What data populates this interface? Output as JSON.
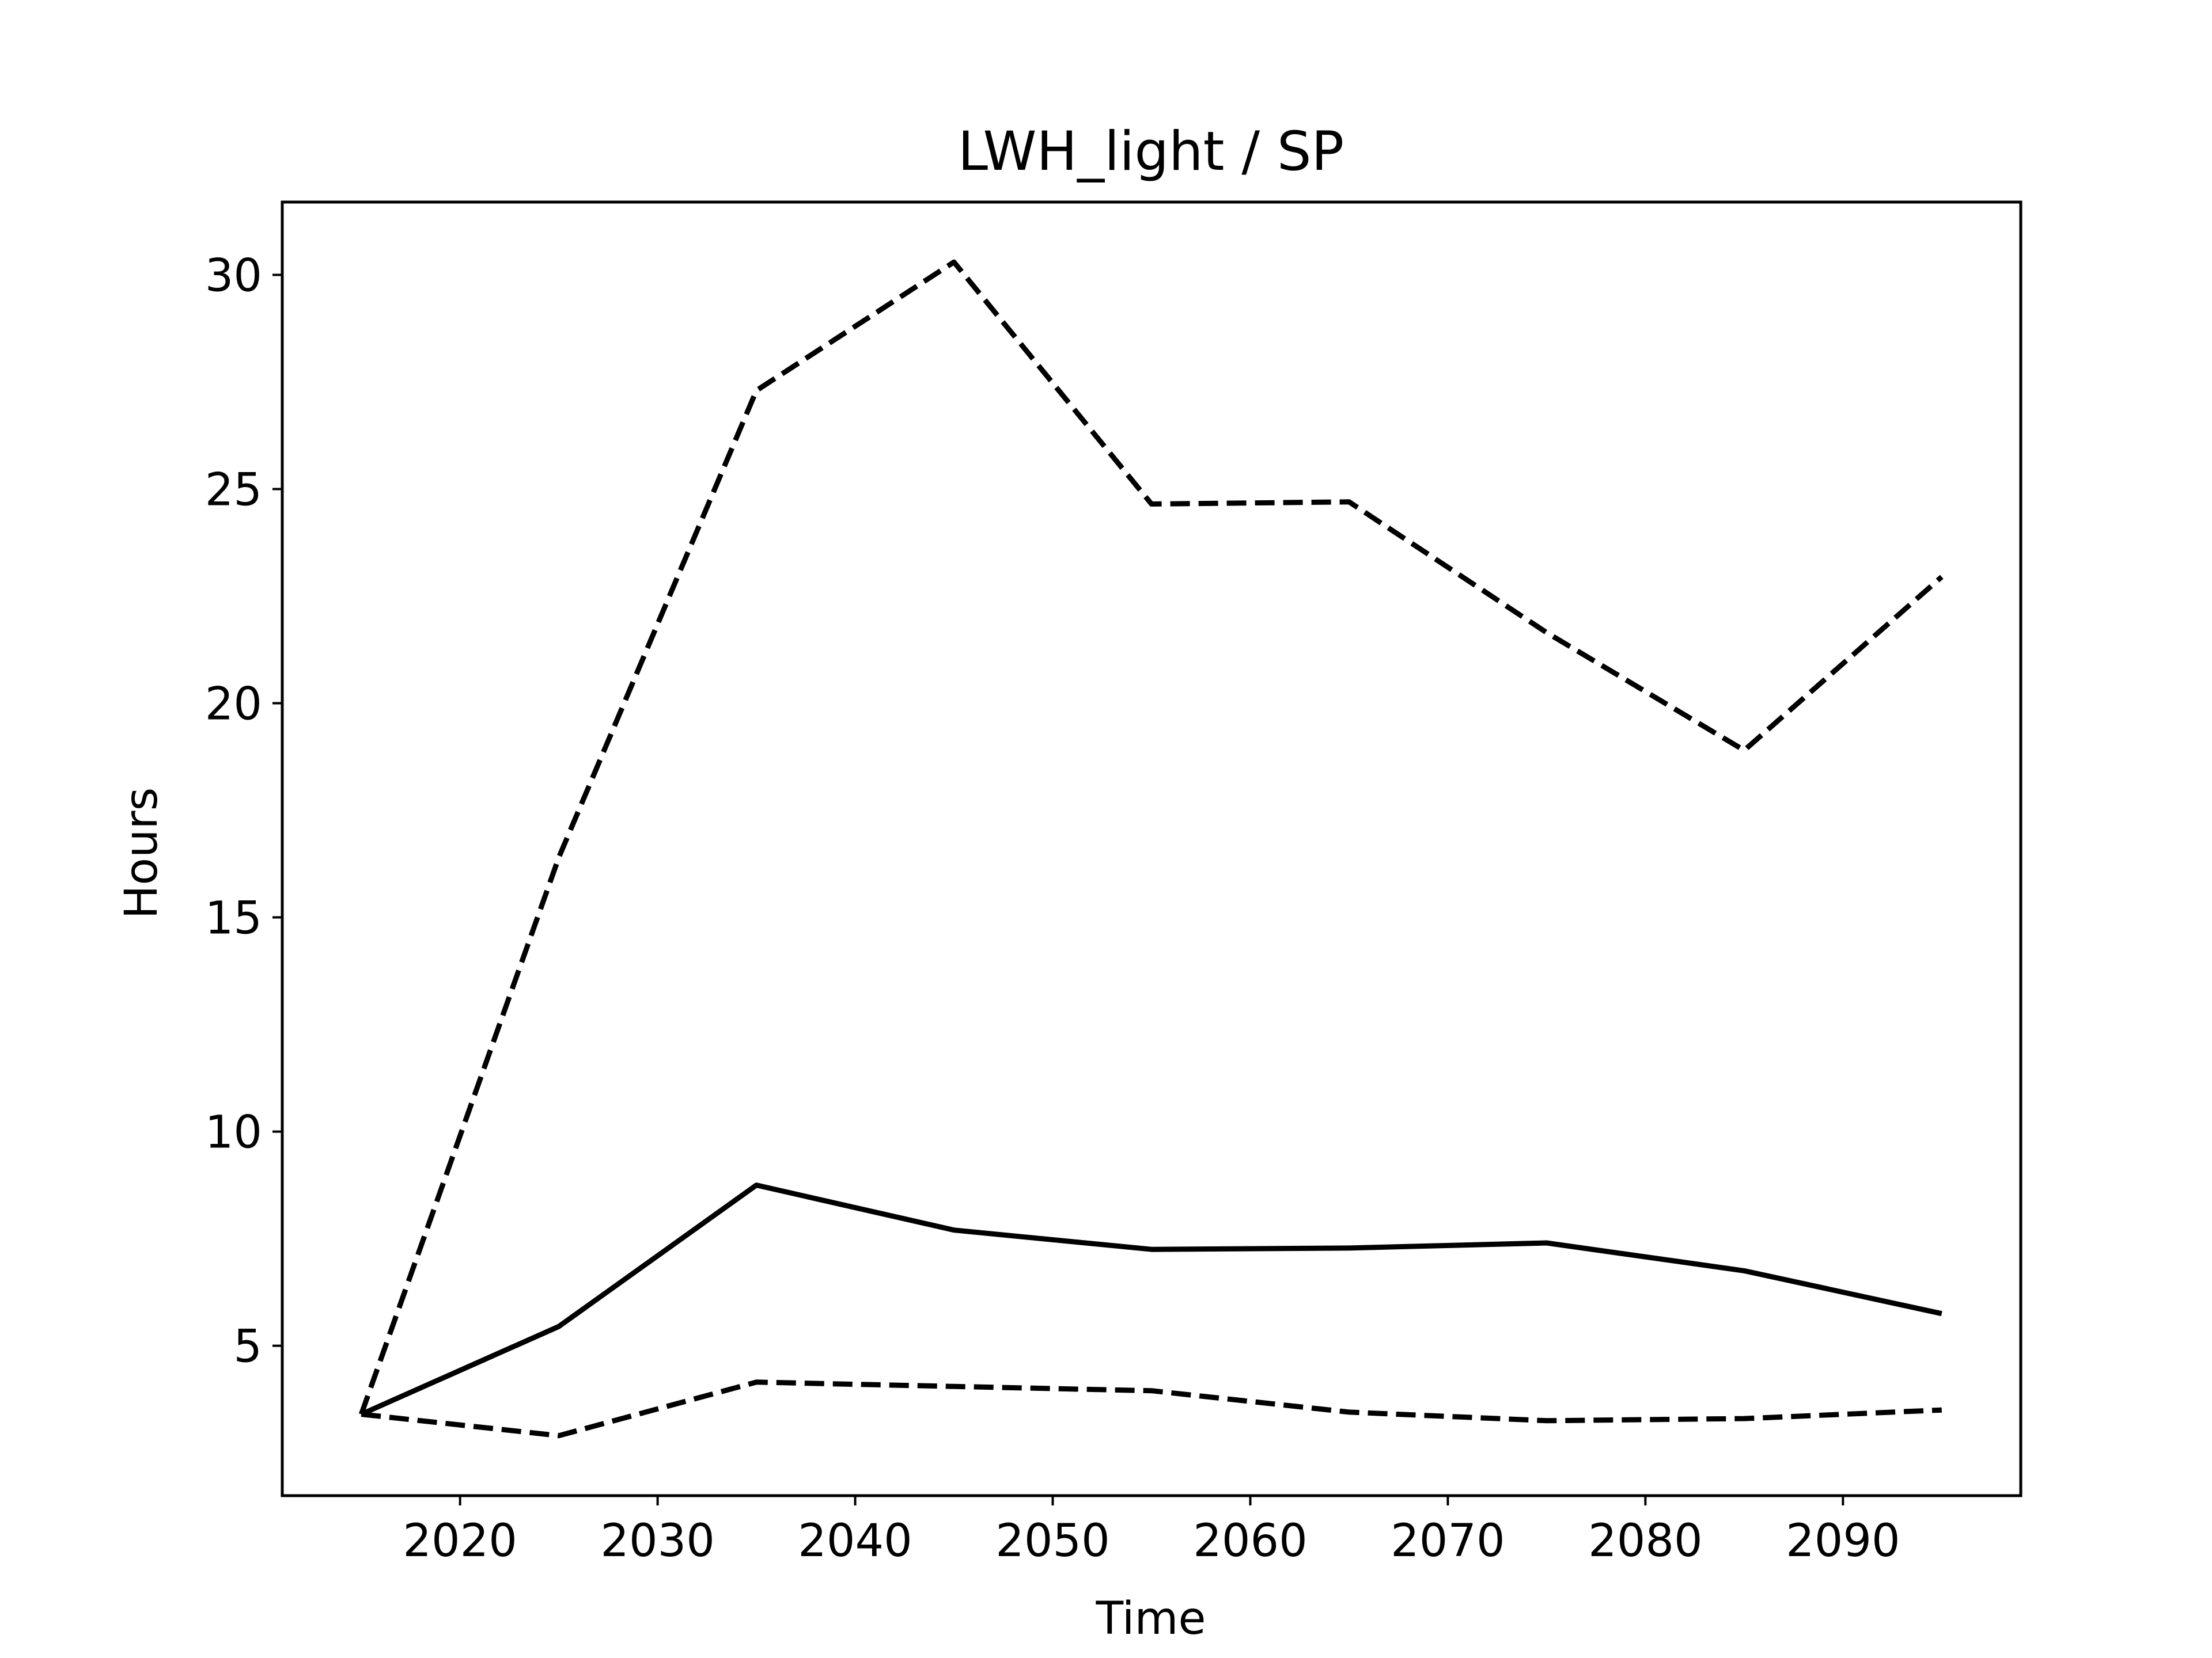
{
  "chart_data": {
    "type": "line",
    "title": "LWH_light / SP",
    "xlabel": "Time",
    "ylabel": "Hours",
    "xlim": [
      2011,
      2099
    ],
    "ylim": [
      1.5,
      31.7
    ],
    "xticks": [
      2020,
      2030,
      2040,
      2050,
      2060,
      2070,
      2080,
      2090
    ],
    "yticks": [
      5,
      10,
      15,
      20,
      25,
      30
    ],
    "grid": false,
    "legend": "none",
    "colors": {
      "line": "#000000",
      "background": "#ffffff"
    },
    "x": [
      2015,
      2025,
      2035,
      2045,
      2055,
      2065,
      2075,
      2085,
      2095
    ],
    "series": [
      {
        "style": "solid",
        "values": [
          3.4,
          5.45,
          8.75,
          7.7,
          7.25,
          7.28,
          7.4,
          6.75,
          5.75
        ]
      },
      {
        "style": "dashed",
        "values": [
          3.4,
          16.4,
          27.3,
          30.3,
          24.65,
          24.7,
          21.65,
          18.9,
          22.95
        ]
      },
      {
        "style": "dashed",
        "values": [
          3.4,
          2.9,
          4.15,
          4.05,
          3.95,
          3.45,
          3.25,
          3.3,
          3.5
        ]
      }
    ]
  }
}
